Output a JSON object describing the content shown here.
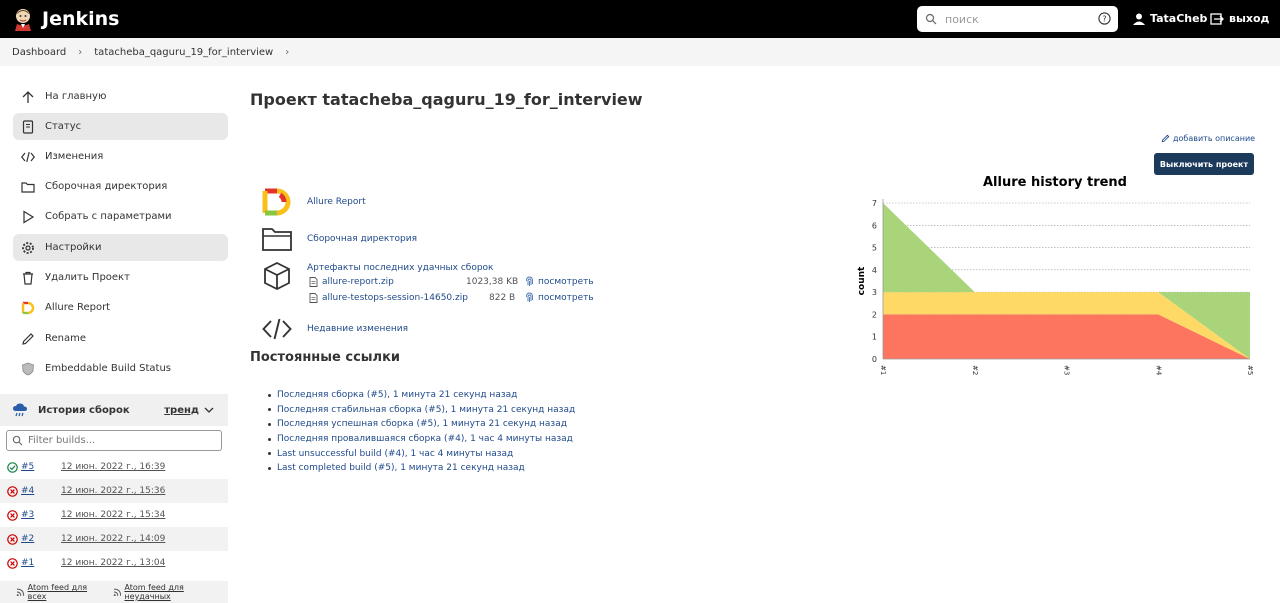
{
  "header": {
    "app_name": "Jenkins",
    "search_placeholder": "поиск",
    "user_name": "TataCheb",
    "logout_label": "выход"
  },
  "breadcrumb": [
    "Dashboard",
    "tatacheba_qaguru_19_for_interview"
  ],
  "sidebar": {
    "items": [
      {
        "label": "На главную",
        "icon": "arrow-up-icon"
      },
      {
        "label": "Статус",
        "icon": "document-icon"
      },
      {
        "label": "Изменения",
        "icon": "code-icon"
      },
      {
        "label": "Сборочная директория",
        "icon": "folder-icon"
      },
      {
        "label": "Собрать с параметрами",
        "icon": "play-icon"
      },
      {
        "label": "Настройки",
        "icon": "gear-icon"
      },
      {
        "label": "Удалить Проект",
        "icon": "trash-icon"
      },
      {
        "label": "Allure Report",
        "icon": "allure-icon"
      },
      {
        "label": "Rename",
        "icon": "pencil-icon"
      },
      {
        "label": "Embeddable Build Status",
        "icon": "badge-icon"
      }
    ],
    "history": {
      "title": "История сборок",
      "trend_label": "тренд",
      "filter_placeholder": "Filter builds...",
      "builds": [
        {
          "num": "#5",
          "date": "12 июн. 2022 г., 16:39",
          "status": "success"
        },
        {
          "num": "#4",
          "date": "12 июн. 2022 г., 15:36",
          "status": "failed"
        },
        {
          "num": "#3",
          "date": "12 июн. 2022 г., 15:34",
          "status": "failed"
        },
        {
          "num": "#2",
          "date": "12 июн. 2022 г., 14:09",
          "status": "failed"
        },
        {
          "num": "#1",
          "date": "12 июн. 2022 г., 13:04",
          "status": "failed"
        }
      ],
      "feed_all": "Atom feed для всех",
      "feed_failures": "Atom feed для неудачных"
    }
  },
  "main": {
    "title": "Проект tatacheba_qaguru_19_for_interview",
    "add_description": "добавить описание",
    "disable_button": "Выключить проект",
    "links": {
      "allure": "Allure Report",
      "workspace": "Сборочная директория",
      "artifacts": "Артефакты последних удачных сборок",
      "changes": "Недавние изменения"
    },
    "artifacts": [
      {
        "name": "allure-report.zip",
        "size": "1023,38 KB",
        "view": "посмотреть"
      },
      {
        "name": "allure-testops-session-14650.zip",
        "size": "822 B",
        "view": "посмотреть"
      }
    ],
    "permalinks_title": "Постоянные ссылки",
    "permalinks": [
      "Последняя сборка (#5), 1 минута 21 секунд назад",
      "Последняя стабильная сборка (#5), 1 минута 21 секунд назад",
      "Последняя успешная сборка (#5), 1 минута 21 секунд назад",
      "Последняя провалившаяся сборка (#4), 1 час 4 минуты назад",
      "Last unsuccessful build (#4), 1 час 4 минуты назад",
      "Last completed build (#5), 1 минута 21 секунд назад"
    ]
  },
  "chart_data": {
    "type": "area",
    "title": "Allure history trend",
    "ylabel": "count",
    "xlabel": "",
    "categories": [
      "#1",
      "#2",
      "#3",
      "#4",
      "#5"
    ],
    "ylim": [
      0,
      7
    ],
    "yticks": [
      0,
      1,
      2,
      3,
      4,
      5,
      6,
      7
    ],
    "grid": true,
    "series": [
      {
        "color": "#fd745f",
        "values": [
          2,
          2,
          2,
          2,
          0
        ]
      },
      {
        "color": "#ffd966",
        "values": [
          1,
          1,
          1,
          1,
          0
        ]
      },
      {
        "color": "#a9d47a",
        "values": [
          4,
          0,
          0,
          0,
          3
        ]
      }
    ]
  }
}
